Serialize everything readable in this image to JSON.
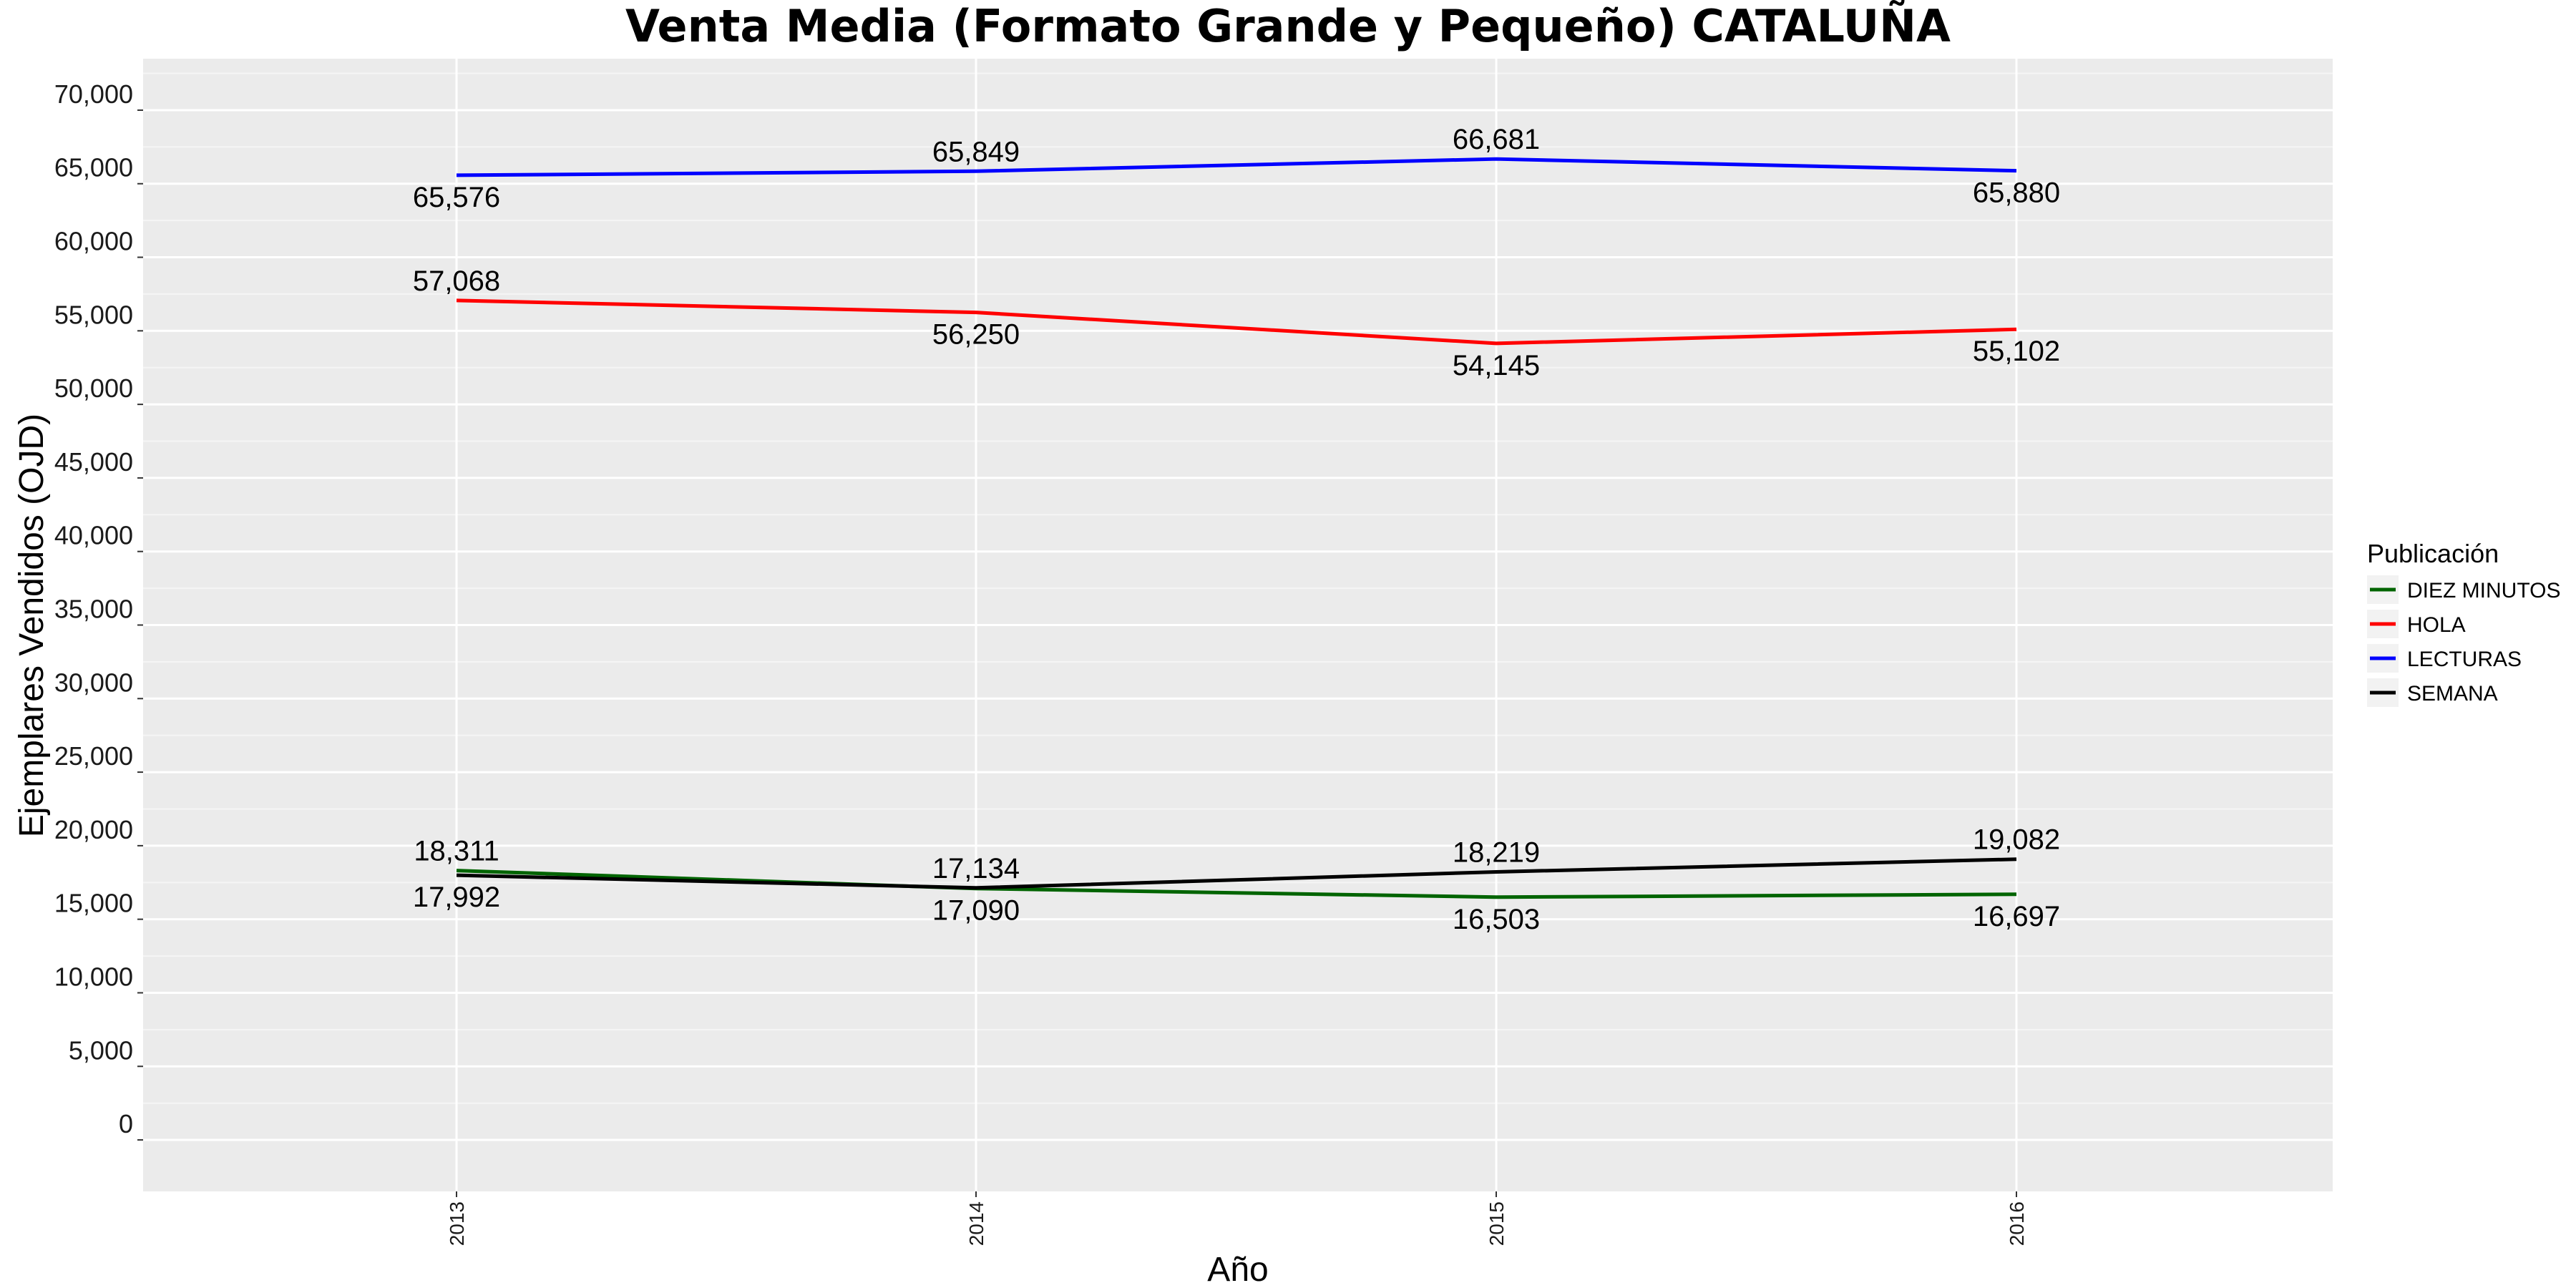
{
  "chart_data": {
    "type": "line",
    "title": "Venta Media (Formato Grande y Pequeño)  CATALUÑA",
    "xlabel": "Año",
    "ylabel": "Ejemplares Vendidos (OJD)",
    "x": [
      "2013",
      "2014",
      "2015",
      "2016"
    ],
    "ylim": [
      -3500,
      73500
    ],
    "yticks": [
      0,
      5000,
      10000,
      15000,
      20000,
      25000,
      30000,
      35000,
      40000,
      45000,
      50000,
      55000,
      60000,
      65000,
      70000
    ],
    "ytick_labels": [
      "0",
      "5,000",
      "10,000",
      "15,000",
      "20,000",
      "25,000",
      "30,000",
      "35,000",
      "40,000",
      "45,000",
      "50,000",
      "55,000",
      "60,000",
      "65,000",
      "70,000"
    ],
    "grid": true,
    "legend": {
      "title": "Publicación",
      "position": "right"
    },
    "series": [
      {
        "name": "DIEZ MINUTOS",
        "color": "#006400",
        "values": [
          18311,
          17090,
          16503,
          16697
        ],
        "labels": [
          "18,311",
          "17,090",
          "16,503",
          "16,697"
        ],
        "label_pos": [
          "above",
          "below",
          "below",
          "below"
        ]
      },
      {
        "name": "HOLA",
        "color": "#ff0000",
        "values": [
          57068,
          56250,
          54145,
          55102
        ],
        "labels": [
          "57,068",
          "56,250",
          "54,145",
          "55,102"
        ],
        "label_pos": [
          "above",
          "below",
          "below",
          "below"
        ]
      },
      {
        "name": "LECTURAS",
        "color": "#0000ff",
        "values": [
          65576,
          65849,
          66681,
          65880
        ],
        "labels": [
          "65,576",
          "65,849",
          "66,681",
          "65,880"
        ],
        "label_pos": [
          "below",
          "above",
          "above",
          "below"
        ]
      },
      {
        "name": "SEMANA",
        "color": "#000000",
        "values": [
          17992,
          17134,
          18219,
          19082
        ],
        "labels": [
          "17,992",
          "17,134",
          "18,219",
          "19,082"
        ],
        "label_pos": [
          "below",
          "above",
          "above",
          "above"
        ]
      }
    ]
  }
}
